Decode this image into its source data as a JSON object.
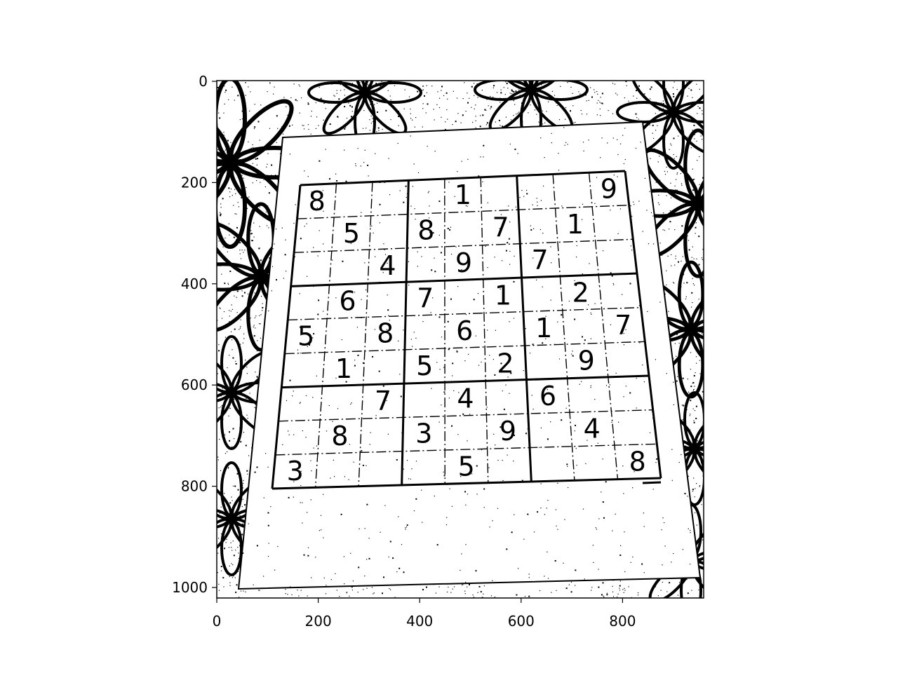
{
  "image": {
    "style": "binarized black-and-white photo",
    "subject": "sudoku puzzle printed on paper lying on a floral patterned tablecloth",
    "colors": {
      "ink": "#000000",
      "paper": "#ffffff"
    }
  },
  "axes": {
    "x_ticks": [
      "0",
      "200",
      "400",
      "600",
      "800"
    ],
    "y_ticks": [
      "0",
      "200",
      "400",
      "600",
      "800",
      "1000"
    ],
    "x_range": [
      0,
      960
    ],
    "y_range": [
      1022,
      0
    ]
  },
  "sudoku": {
    "grid": [
      [
        "8",
        "",
        "",
        "",
        "1",
        "",
        "",
        "",
        "9"
      ],
      [
        "",
        "5",
        "",
        "8",
        "",
        "7",
        "",
        "1",
        ""
      ],
      [
        "",
        "",
        "4",
        "",
        "9",
        "",
        "7",
        "",
        ""
      ],
      [
        "",
        "6",
        "",
        "7",
        "",
        "1",
        "",
        "2",
        ""
      ],
      [
        "5",
        "",
        "8",
        "",
        "6",
        "",
        "1",
        "",
        "7"
      ],
      [
        "",
        "1",
        "",
        "5",
        "",
        "2",
        "",
        "9",
        ""
      ],
      [
        "",
        "",
        "7",
        "",
        "4",
        "",
        "6",
        "",
        ""
      ],
      [
        "",
        "8",
        "",
        "3",
        "",
        "9",
        "",
        "4",
        ""
      ],
      [
        "3",
        "",
        "",
        "",
        "5",
        "",
        "",
        "",
        "8"
      ]
    ]
  }
}
